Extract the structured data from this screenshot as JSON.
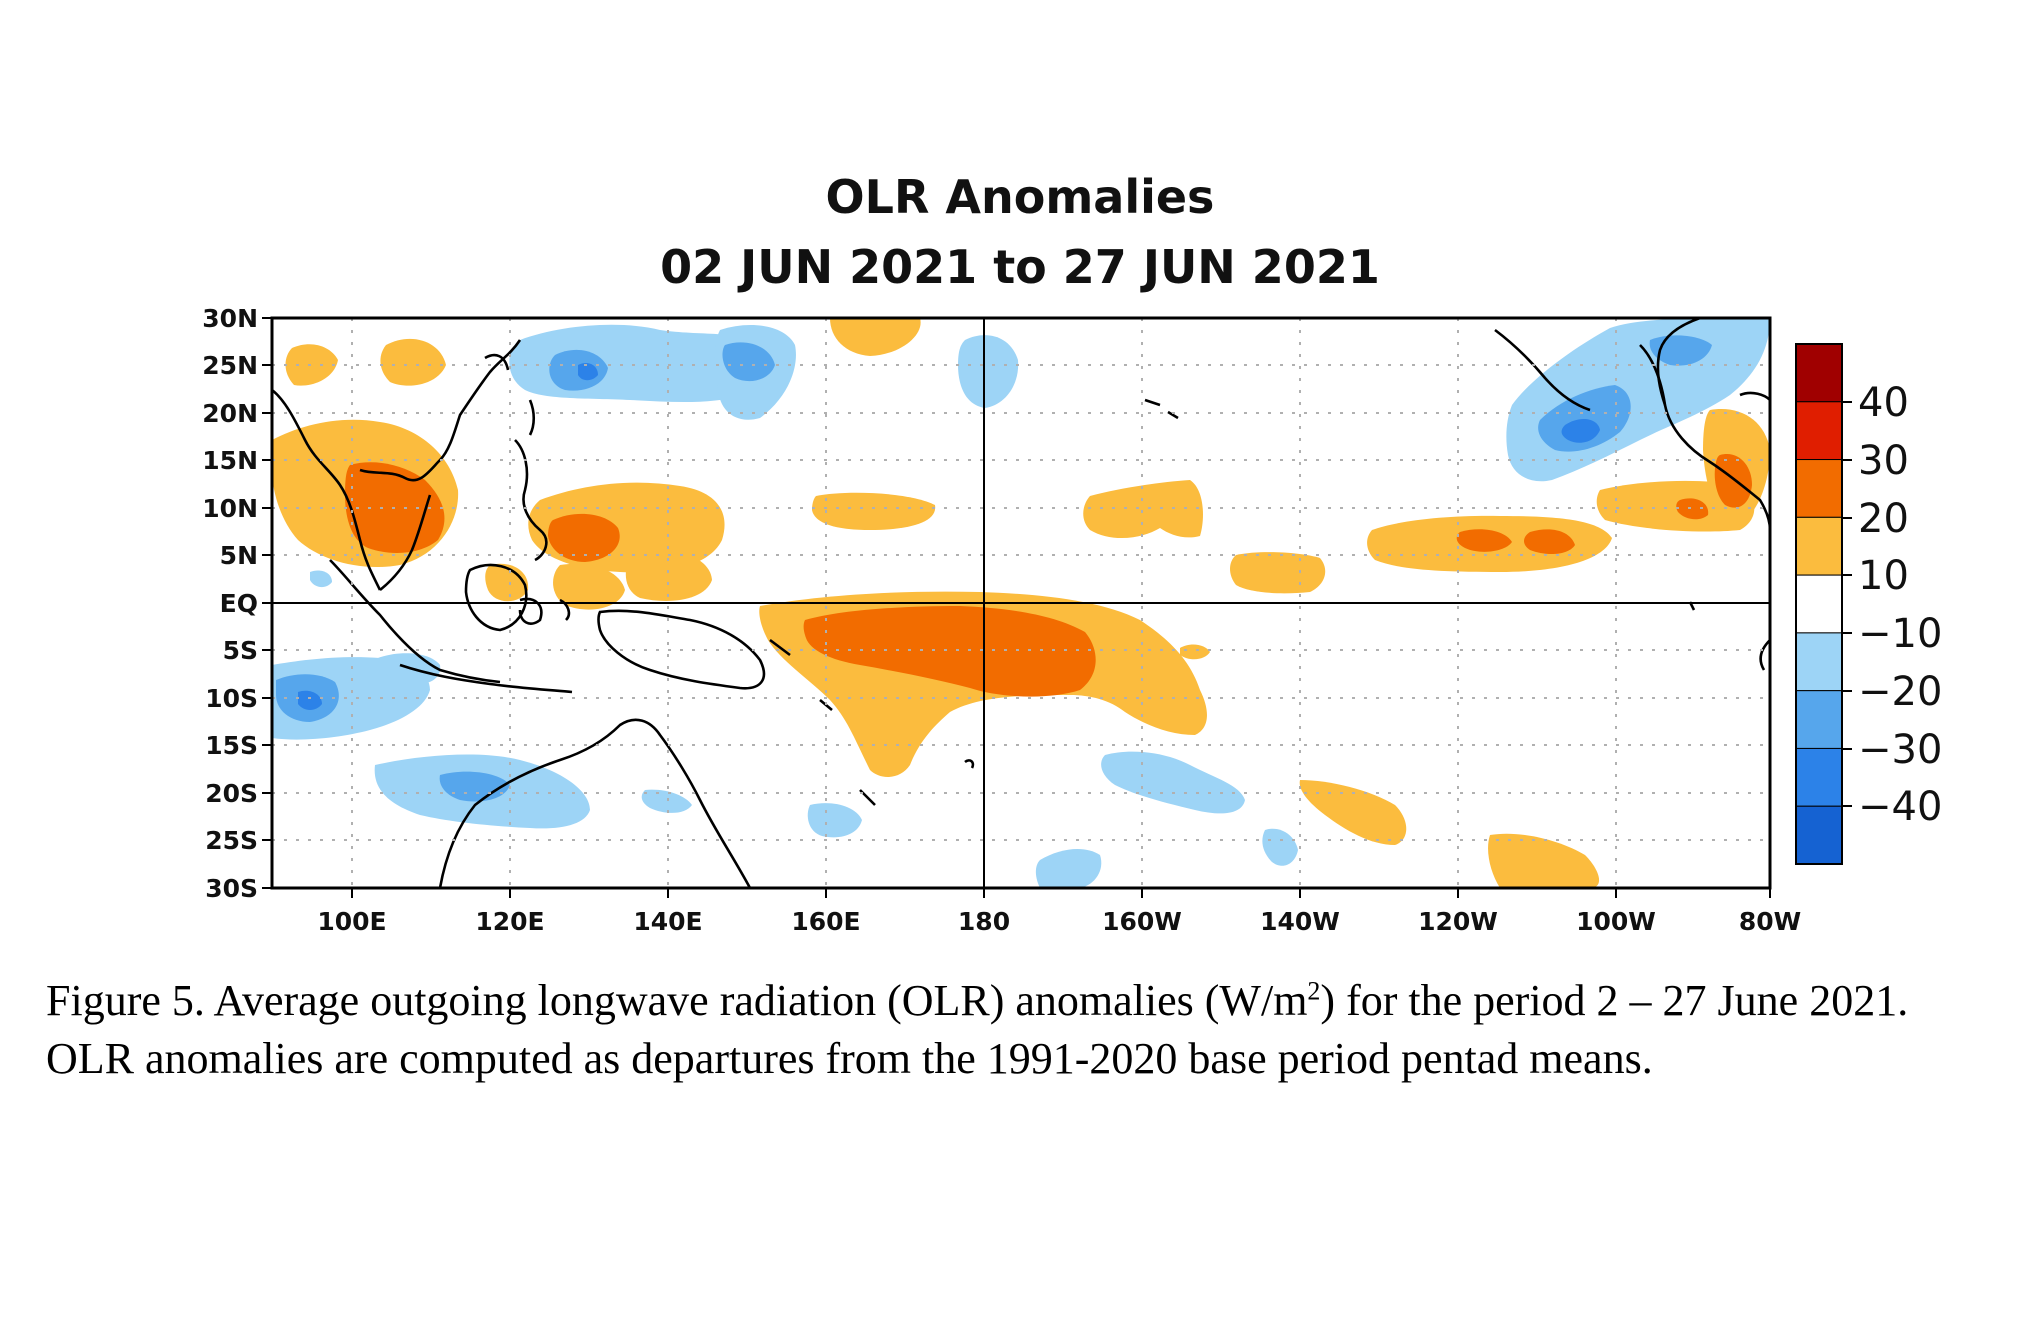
{
  "figure": {
    "title_line1": "OLR Anomalies",
    "title_line2": "02 JUN 2021  to  27 JUN 2021",
    "lat_ticks": [
      "30N",
      "25N",
      "20N",
      "15N",
      "10N",
      "5N",
      "EQ",
      "5S",
      "10S",
      "15S",
      "20S",
      "25S",
      "30S"
    ],
    "lon_ticks": [
      "100E",
      "120E",
      "140E",
      "160E",
      "180",
      "160W",
      "140W",
      "120W",
      "100W",
      "80W"
    ],
    "legend": {
      "labels": [
        "40",
        "30",
        "20",
        "10",
        "−10",
        "−20",
        "−30",
        "−40"
      ],
      "colors": [
        "#a00000",
        "#e01e00",
        "#f26c00",
        "#fbbc3e",
        "#ffffff",
        "#9dd4f6",
        "#56a6ec",
        "#2c82e8",
        "#1562d2"
      ]
    },
    "colors": {
      "orange_light": "#fbbc3e",
      "orange_dark": "#f26c00",
      "blue_light": "#9dd4f6",
      "blue_medium": "#56a6ec",
      "blue_dark": "#2c82e8"
    }
  },
  "caption": {
    "part1": "Figure 5. Average outgoing longwave radiation (OLR) anomalies (W/m",
    "superscript": "2",
    "part2": ") for the period 2 – 27 June 2021.  OLR anomalies are computed as departures from the 1991-2020 base period pentad means."
  }
}
